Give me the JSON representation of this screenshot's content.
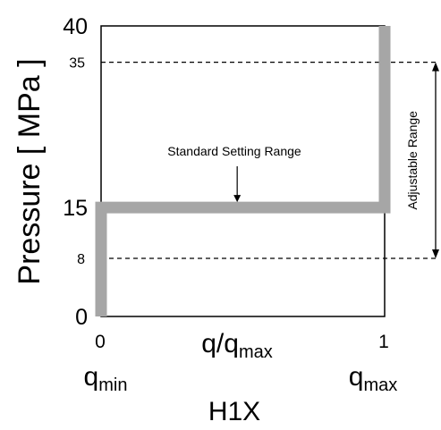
{
  "chart_data": {
    "type": "line",
    "title": "H1X",
    "ylabel": "Pressure [ MPa ]",
    "xlabel": {
      "main": "q/q",
      "sub": "max"
    },
    "xlim": [
      0,
      1
    ],
    "ylim": [
      0,
      40
    ],
    "x_ticks": [
      {
        "value": 0,
        "label": "0"
      },
      {
        "value": 1,
        "label": "1"
      }
    ],
    "y_ticks": [
      {
        "value": 0,
        "label": "0"
      },
      {
        "value": 8,
        "label": "8"
      },
      {
        "value": 15,
        "label": "15"
      },
      {
        "value": 35,
        "label": "35"
      },
      {
        "value": 40,
        "label": "40"
      }
    ],
    "x_end_labels": [
      {
        "value": 0,
        "main": "q",
        "sub": "min"
      },
      {
        "value": 1,
        "main": "q",
        "sub": "max"
      }
    ],
    "series": [
      {
        "color": "#a6a6a6",
        "x": [
          0,
          0,
          1,
          1
        ],
        "y": [
          0,
          15,
          15,
          40
        ]
      }
    ],
    "reference_lines": [
      {
        "y": 35,
        "style": "dashed"
      },
      {
        "y": 8,
        "style": "dashed"
      }
    ],
    "annotations": [
      {
        "text": "Standard Setting Range",
        "x": 0.48,
        "y": 15
      }
    ],
    "range_annotation": {
      "text": "Adjustable Range",
      "from": 8,
      "to": 35
    },
    "grid": false
  }
}
